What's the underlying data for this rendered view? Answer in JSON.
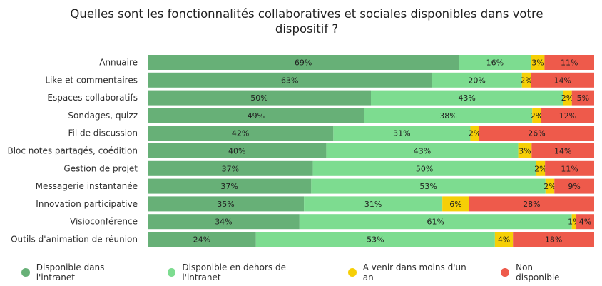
{
  "chart_data": {
    "type": "bar",
    "orientation": "horizontal",
    "stacked": true,
    "title": "Quelles sont les fonctionnalités collaboratives et sociales disponibles dans votre dispositif ?",
    "categories": [
      "Annuaire",
      "Like et commentaires",
      "Espaces collaboratifs",
      "Sondages, quizz",
      "Fil de discussion",
      "Bloc notes partagés, coédition",
      "Gestion de projet",
      "Messagerie instantanée",
      "Innovation participative",
      "Visioconférence",
      "Outils d'animation de réunion"
    ],
    "series": [
      {
        "name": "Disponible dans l'intranet",
        "color": "#67b077",
        "values": [
          69,
          63,
          50,
          49,
          42,
          40,
          37,
          37,
          35,
          34,
          24
        ],
        "labels": [
          "69%",
          "63%",
          "50%",
          "49%",
          "42%",
          "40%",
          "37%",
          "37%",
          "35%",
          "34%",
          "24%"
        ]
      },
      {
        "name": "Disponible en dehors de l'intranet",
        "color": "#7ddc90",
        "values": [
          16,
          20,
          43,
          38,
          31,
          43,
          50,
          53,
          31,
          61,
          53
        ],
        "labels": [
          "16%",
          "20%",
          "43%",
          "38%",
          "31%",
          "43%",
          "50%",
          "53%",
          "31%",
          "61%",
          "53%"
        ]
      },
      {
        "name": "A venir dans moins d'un an",
        "color": "#f6cf06",
        "values": [
          3,
          2,
          2,
          2,
          2,
          3,
          2,
          2,
          6,
          1,
          4
        ],
        "labels": [
          "3%",
          "2%",
          "2%",
          "2%",
          "2%",
          "3%",
          "2%",
          "2%",
          "6%",
          "1%",
          "4%"
        ]
      },
      {
        "name": "Non disponible",
        "color": "#ee5a4b",
        "values": [
          11,
          14,
          5,
          12,
          26,
          14,
          11,
          9,
          28,
          4,
          18
        ],
        "labels": [
          "11%",
          "14%",
          "5%",
          "12%",
          "26%",
          "14%",
          "11%",
          "9%",
          "28%",
          "4%",
          "18%"
        ]
      }
    ],
    "legend_position": "bottom",
    "grid": false
  }
}
